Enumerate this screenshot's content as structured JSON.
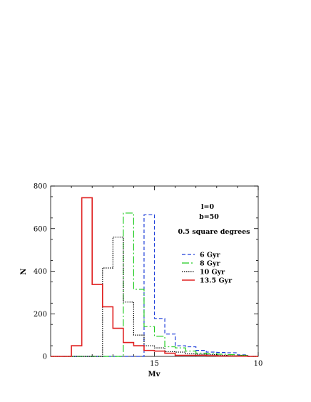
{
  "chart_data": {
    "type": "histogram",
    "xlabel": "Mv",
    "ylabel": "N",
    "xlim": [
      20,
      10
    ],
    "ylim": [
      0,
      800
    ],
    "x_ticks": [
      15,
      10
    ],
    "y_ticks": [
      0,
      200,
      400,
      600,
      800
    ],
    "bin_edges": [
      19,
      18.5,
      18,
      17.5,
      17,
      16.5,
      16,
      15.5,
      15,
      14.5,
      14,
      13.5,
      13,
      12.5,
      12,
      11.5,
      11,
      10.5
    ],
    "series": [
      {
        "name": "6 Gyr",
        "color": "#1f3fd9",
        "dash": "5,3",
        "values": [
          0,
          0,
          0,
          0,
          0,
          0,
          0,
          665,
          178,
          105,
          50,
          45,
          28,
          20,
          18,
          17,
          7
        ]
      },
      {
        "name": "8 Gyr",
        "color": "#22cc22",
        "dash": "10,3,2,3",
        "values": [
          0,
          0,
          0,
          0,
          0,
          673,
          315,
          140,
          95,
          45,
          40,
          25,
          15,
          13,
          10,
          8,
          5
        ]
      },
      {
        "name": "10 Gyr",
        "color": "#000000",
        "dash": "1.5,1.5",
        "values": [
          0,
          0,
          0,
          415,
          560,
          255,
          100,
          50,
          40,
          22,
          20,
          12,
          10,
          8,
          5,
          3,
          3
        ]
      },
      {
        "name": "13.5 Gyr",
        "color": "#e02020",
        "dash": "",
        "values": [
          50,
          745,
          338,
          233,
          132,
          65,
          50,
          28,
          25,
          15,
          5,
          5,
          5,
          3,
          2,
          2,
          1
        ]
      }
    ],
    "annotations": [
      "l=0",
      "b=50",
      "0.5 square degrees"
    ],
    "legend_position": "right"
  }
}
